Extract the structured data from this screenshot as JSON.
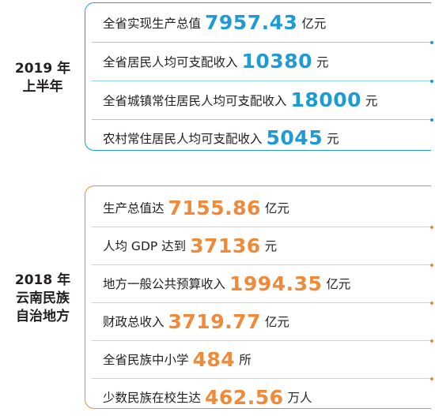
{
  "sections": [
    {
      "title_line1": "2019 年",
      "title_line2": "上半年",
      "accent": "#1e9bd7",
      "rows": [
        {
          "label": "全省实现生产总值",
          "value": "7957.43",
          "unit": "亿元"
        },
        {
          "label": "全省居民人均可支配收入",
          "value": "10380",
          "unit": "元"
        },
        {
          "label": "全省城镇常住居民人均可支配收入",
          "value": "18000",
          "unit": "元"
        },
        {
          "label": "农村常住居民人均可支配收入",
          "value": "5045",
          "unit": "元"
        }
      ]
    },
    {
      "title_line1": "2018 年",
      "title_line2": "云南民族",
      "title_line3": "自治地方",
      "accent": "#f08a38",
      "rows": [
        {
          "label": "生产总值达",
          "value": "7155.86",
          "unit": "亿元"
        },
        {
          "label": "人均 GDP 达到",
          "value": "37136",
          "unit": "元"
        },
        {
          "label": "地方一般公共预算收入",
          "value": "1994.35",
          "unit": "亿元"
        },
        {
          "label": "财政总收入",
          "value": "3719.77",
          "unit": "亿元"
        },
        {
          "label": "全省民族中小学",
          "value": "484",
          "unit": "所"
        },
        {
          "label": "少数民族在校生达",
          "value": "462.56",
          "unit": "万人"
        }
      ]
    }
  ]
}
